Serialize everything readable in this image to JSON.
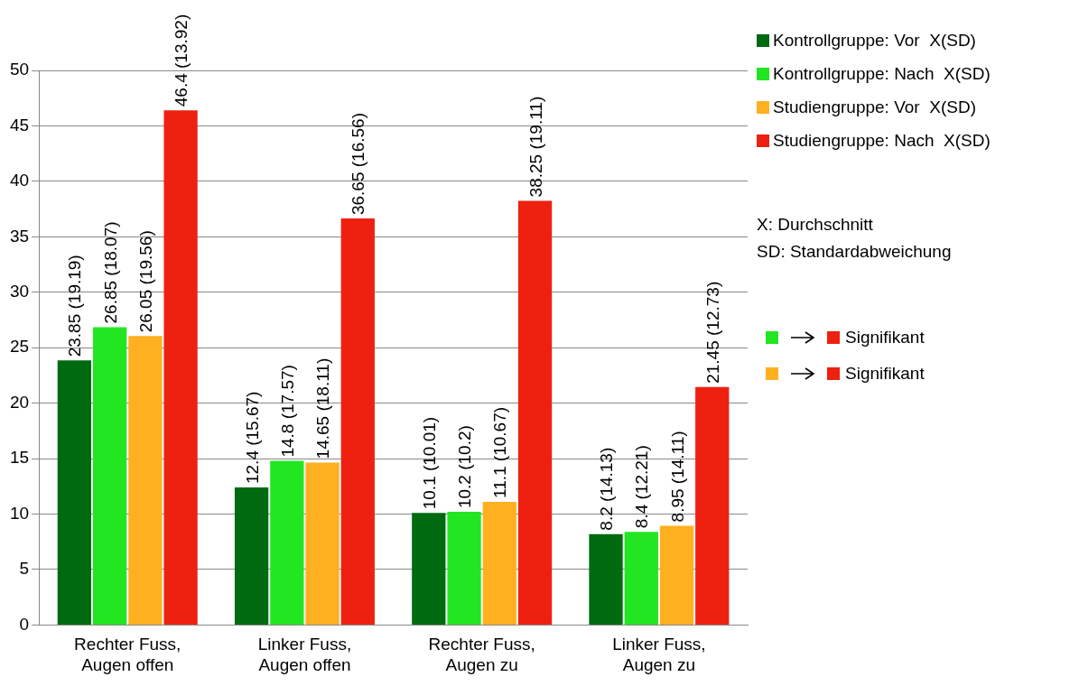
{
  "chart_data": {
    "type": "bar",
    "categories": [
      "Rechter Fuss, Augen offen",
      "Linker Fuss, Augen offen",
      "Rechter Fuss, Augen zu",
      "Linker Fuss, Augen zu"
    ],
    "series": [
      {
        "name": "Kontrollgruppe: Vor  X(SD)",
        "color": "#006a10",
        "values": [
          23.85,
          12.4,
          10.1,
          8.2
        ],
        "value_labels": [
          "23.85 (19.19)",
          "12.4 (15.67)",
          "10.1 (10.01)",
          "8.2 (14.13)"
        ]
      },
      {
        "name": "Kontrollgruppe: Nach  X(SD)",
        "color": "#22e622",
        "values": [
          26.85,
          14.8,
          10.2,
          8.4
        ],
        "value_labels": [
          "26.85 (18.07)",
          "14.8 (17.57)",
          "10.2 (10.2)",
          "8.4 (12.21)"
        ]
      },
      {
        "name": "Studiengruppe: Vor  X(SD)",
        "color": "#ffb020",
        "values": [
          26.05,
          14.65,
          11.1,
          8.95
        ],
        "value_labels": [
          "26.05 (19.56)",
          "14.65 (18.11)",
          "11.1 (10.67)",
          "8.95 (14.11)"
        ]
      },
      {
        "name": "Studiengruppe: Nach  X(SD)",
        "color": "#ee2010",
        "values": [
          46.4,
          36.65,
          38.25,
          21.45
        ],
        "value_labels": [
          "46.4 (13.92)",
          "36.65 (16.56)",
          "38.25 (19.11)",
          "21.45 (12.73)"
        ]
      }
    ],
    "ylim": [
      0,
      50
    ],
    "yticks": [
      0,
      5,
      10,
      15,
      20,
      25,
      30,
      35,
      40,
      45,
      50
    ],
    "grid": "y",
    "legend": "top right",
    "annotations": [
      "X: Durchschnitt",
      "SD: Standardabweichung",
      "Signifikant",
      "Signifikant"
    ]
  }
}
